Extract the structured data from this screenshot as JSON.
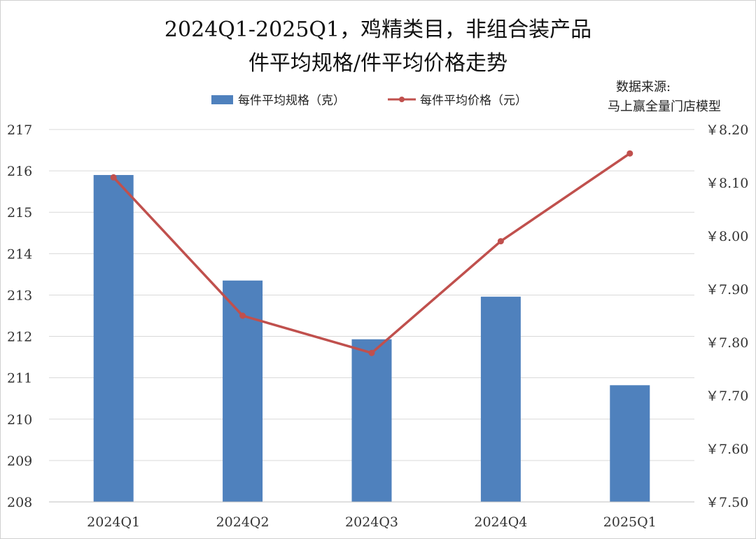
{
  "chart_data": {
    "type": "bar+line",
    "title_lines": [
      "2024Q1-2025Q1，鸡精类目，非组合装产品",
      "件平均规格/件平均价格走势"
    ],
    "source_lines": [
      "数据来源:",
      "马上赢全量门店模型"
    ],
    "categories": [
      "2024Q1",
      "2024Q2",
      "2024Q3",
      "2024Q4",
      "2025Q1"
    ],
    "series": [
      {
        "name": "每件平均规格（克）",
        "type": "bar",
        "axis": "left",
        "color": "#4f81bd",
        "values": [
          215.9,
          213.35,
          211.93,
          212.96,
          210.82
        ]
      },
      {
        "name": "每件平均价格（元）",
        "type": "line",
        "axis": "right",
        "color": "#c0504d",
        "values": [
          8.11,
          7.85,
          7.78,
          7.99,
          8.155
        ]
      }
    ],
    "y_left": {
      "min": 208,
      "max": 217,
      "step": 1,
      "tick_labels": [
        "208",
        "209",
        "210",
        "211",
        "212",
        "213",
        "214",
        "215",
        "216",
        "217"
      ]
    },
    "y_right": {
      "min": 7.5,
      "max": 8.2,
      "step": 0.1,
      "tick_labels": [
        "￥7.50",
        "￥7.60",
        "￥7.70",
        "￥7.80",
        "￥7.90",
        "￥8.00",
        "￥8.10",
        "￥8.20"
      ]
    },
    "grid": true,
    "legend_position": "top-center"
  }
}
